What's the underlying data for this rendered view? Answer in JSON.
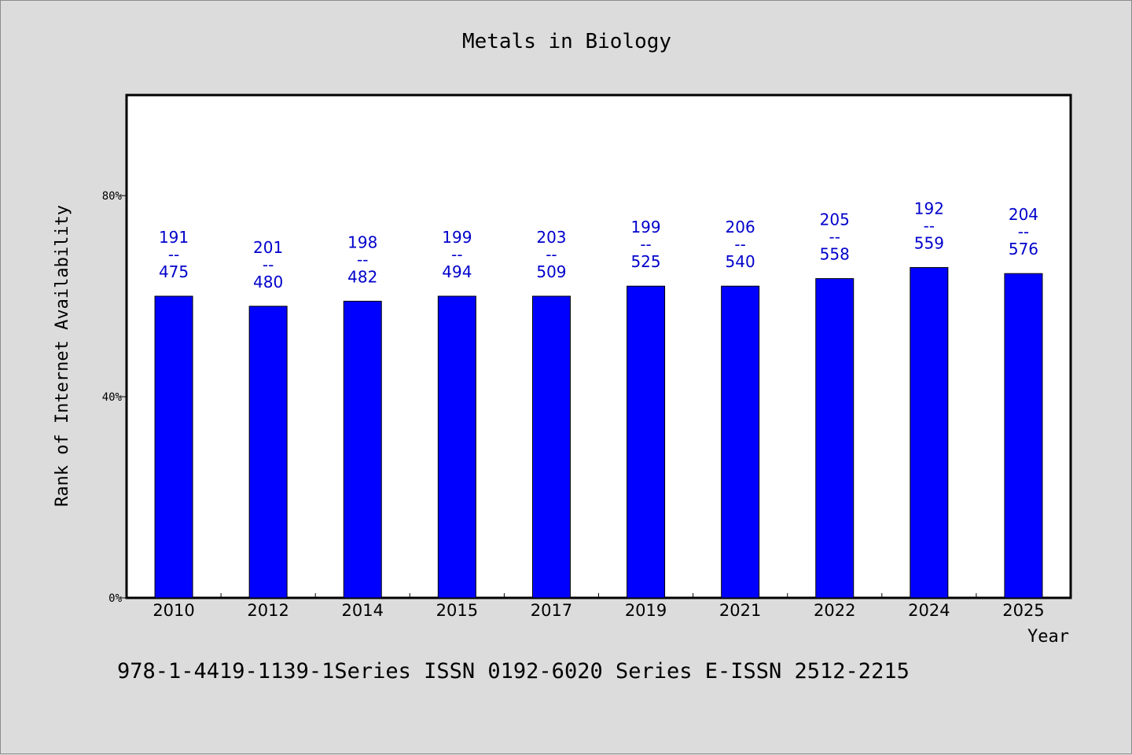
{
  "chart_data": {
    "type": "bar",
    "title": "Metals in Biology",
    "xlabel": "Year",
    "ylabel": "Rank of Internet Availability",
    "categories": [
      "2010",
      "2012",
      "2014",
      "2015",
      "2017",
      "2019",
      "2021",
      "2022",
      "2024",
      "2025"
    ],
    "values": [
      0.6,
      0.58,
      0.59,
      0.6,
      0.6,
      0.62,
      0.62,
      0.635,
      0.657,
      0.645
    ],
    "value_format": "percent",
    "ylim": [
      0,
      1.0
    ],
    "yticks": [
      {
        "value": 0.0,
        "label": "0%"
      },
      {
        "value": 0.4,
        "label": "40%"
      },
      {
        "value": 0.8,
        "label": "80%"
      }
    ],
    "data_labels": [
      {
        "rank": "191",
        "sep": "--",
        "total": "475"
      },
      {
        "rank": "201",
        "sep": "--",
        "total": "480"
      },
      {
        "rank": "198",
        "sep": "--",
        "total": "482"
      },
      {
        "rank": "199",
        "sep": "--",
        "total": "494"
      },
      {
        "rank": "203",
        "sep": "--",
        "total": "509"
      },
      {
        "rank": "199",
        "sep": "--",
        "total": "525"
      },
      {
        "rank": "206",
        "sep": "--",
        "total": "540"
      },
      {
        "rank": "205",
        "sep": "--",
        "total": "558"
      },
      {
        "rank": "192",
        "sep": "--",
        "total": "559"
      },
      {
        "rank": "204",
        "sep": "--",
        "total": "576"
      }
    ],
    "bar_color": "#0000ff",
    "label_color": "#0000cc",
    "background": "#dcdcdc",
    "plot_background": "#ffffff",
    "grid": false,
    "legend": "none"
  },
  "footer_text": "978-1-4419-1139-1Series ISSN 0192-6020 Series E-ISSN 2512-2215"
}
